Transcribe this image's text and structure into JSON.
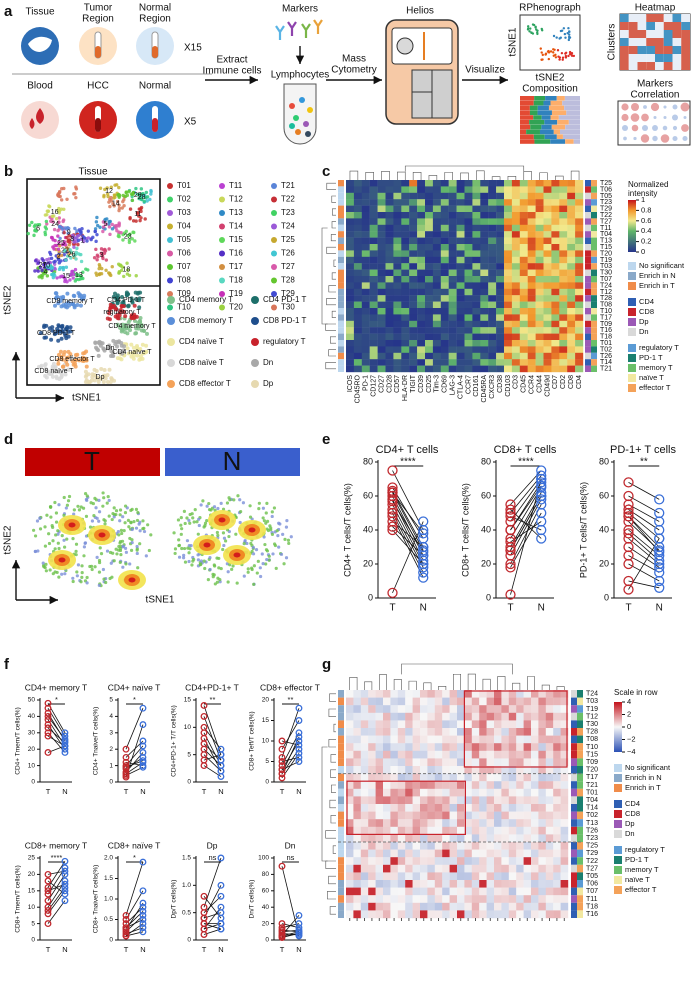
{
  "a": {
    "letter": "a",
    "tissue": "Tissue",
    "tumor_region": [
      "Tumor",
      "Region"
    ],
    "normal_region": [
      "Normal",
      "Region"
    ],
    "x15": "X15",
    "blood": "Blood",
    "hcc": "HCC",
    "normal": "Normal",
    "x5": "X5",
    "extract": [
      "Extract",
      "Immune cells"
    ],
    "markers": "Markers",
    "lymphocytes": "Lymphocytes",
    "mass_cytometry": [
      "Mass",
      "Cytometry"
    ],
    "helios": "Helios",
    "visualize": "Visualize",
    "rphenograph": "RPhenograph",
    "tsne1": "tSNE1",
    "tsne2": "tSNE2",
    "composition": "Composition",
    "heatmap": "Heatmap",
    "clusters": "Clusters",
    "markers_correlation": [
      "Markers",
      "Correlation"
    ]
  },
  "b": {
    "letter": "b",
    "title": "Tissue",
    "x_label": "tSNE1",
    "y_label": "tSNE2",
    "clusters": [
      "T01",
      "T02",
      "T03",
      "T04",
      "T05",
      "T06",
      "T07",
      "T08",
      "T09",
      "T10",
      "T11",
      "T12",
      "T13",
      "T14",
      "T15",
      "T16",
      "T17",
      "T18",
      "T19",
      "T20",
      "T21",
      "T22",
      "T23",
      "T24",
      "T25",
      "T26",
      "T27",
      "T28",
      "T29",
      "T30"
    ],
    "map_labels": [
      "11",
      "13",
      "10",
      "12",
      "28",
      "24",
      "4",
      "2",
      "14",
      "20",
      "15",
      "16",
      "5",
      "3",
      "23",
      "27",
      "22",
      "26",
      "25",
      "18",
      "9",
      "8",
      "6",
      "1"
    ],
    "cell_types": [
      {
        "name": "CD4 memory T",
        "color": "#7fc08a"
      },
      {
        "name": "CD4 PD-1 T",
        "color": "#1d6f6a"
      },
      {
        "name": "CD8 memory T",
        "color": "#5b8fd9"
      },
      {
        "name": "CD8 PD-1 T",
        "color": "#1f4e8c"
      },
      {
        "name": "CD4 naïve T",
        "color": "#ece6a0"
      },
      {
        "name": "regulatory T",
        "color": "#c8232c"
      },
      {
        "name": "CD8 naïve T",
        "color": "#d8d8d8"
      },
      {
        "name": "Dn",
        "color": "#a8a8a8"
      },
      {
        "name": "CD8 effector T",
        "color": "#f4a259"
      },
      {
        "name": "Dp",
        "color": "#e6d9b0"
      }
    ]
  },
  "c": {
    "letter": "c",
    "rows": [
      "T25",
      "T06",
      "T05",
      "T23",
      "T29",
      "T22",
      "T27",
      "T11",
      "T04",
      "T13",
      "T15",
      "T20",
      "T19",
      "T03",
      "T30",
      "T07",
      "T24",
      "T12",
      "T28",
      "T08",
      "T10",
      "T17",
      "T09",
      "T16",
      "T18",
      "T01",
      "T02",
      "T26",
      "T14",
      "T21"
    ],
    "columns": [
      "ICOS",
      "CD45RO",
      "PD-1",
      "CD127",
      "CD27",
      "CD28",
      "CD57",
      "HLA-DR",
      "TIGIT",
      "CD39",
      "CD25",
      "Tim-3",
      "CD69",
      "LAG-3",
      "CTLA-4",
      "CCR7",
      "CD161",
      "CD45RA",
      "CXCR3",
      "CD38",
      "CD103",
      "CD3",
      "CD45",
      "CCR4",
      "CD44",
      "CD49d",
      "CD7",
      "CD2",
      "CD8",
      "CD4"
    ],
    "colorbar_title": [
      "Normalized",
      "intensity"
    ],
    "colorbar_ticks": [
      1,
      0.8,
      0.6,
      0.4,
      0.2,
      0
    ]
  },
  "legend": [
    {
      "name": "No significant",
      "color": "#bdd7ee"
    },
    {
      "name": "Enrich in N",
      "color": "#8aa9c9"
    },
    {
      "name": "Enrich in T",
      "color": "#f08c4a"
    },
    {
      "name": "CD4",
      "color": "#2f5fb3"
    },
    {
      "name": "CD8",
      "color": "#c8232c"
    },
    {
      "name": "Dp",
      "color": "#9b59b6"
    },
    {
      "name": "Dn",
      "color": "#d9d9d9"
    },
    {
      "name": "regulatory T",
      "color": "#5b9bd5"
    },
    {
      "name": "PD-1 T",
      "color": "#1a7f6f"
    },
    {
      "name": "memory T",
      "color": "#6abf69"
    },
    {
      "name": "naïve T",
      "color": "#f2e8a0"
    },
    {
      "name": "effector T",
      "color": "#f4a259"
    }
  ],
  "d": {
    "letter": "d",
    "groups": [
      {
        "name": "T",
        "color": "#c00000"
      },
      {
        "name": "N",
        "color": "#3a5fcd"
      }
    ],
    "x_label": "tSNE1",
    "y_label": "tSNE2"
  },
  "e": {
    "letter": "e",
    "charts": [
      {
        "title": "CD4+ T cells",
        "y_label": "CD4+ T cells/T cells(%)",
        "significance": "****",
        "categories": [
          "T",
          "N"
        ],
        "ylim": [
          0,
          80
        ],
        "yticks": [
          0,
          20,
          40,
          60,
          80
        ],
        "series": [
          {
            "color": "#c0282d",
            "values": [
              75,
              65,
              63,
              62,
              60,
              58,
              55,
              52,
              50,
              48,
              45,
              42,
              40,
              3,
              62,
              57
            ]
          },
          {
            "color": "#3a6fd8",
            "values": [
              40,
              35,
              30,
              28,
              25,
              22,
              20,
              18,
              15,
              12,
              30,
              25,
              20,
              45,
              38,
              27
            ]
          }
        ]
      },
      {
        "title": "CD8+ T cells",
        "y_label": "CD8+ T cells/T cells(%)",
        "significance": "****",
        "categories": [
          "T",
          "N"
        ],
        "ylim": [
          0,
          80
        ],
        "yticks": [
          0,
          20,
          40,
          60,
          80
        ],
        "series": [
          {
            "color": "#c0282d",
            "values": [
              55,
              50,
              45,
              40,
              35,
              30,
              28,
              25,
              20,
              18,
              33,
              48,
              52,
              2,
              40,
              28
            ]
          },
          {
            "color": "#3a6fd8",
            "values": [
              75,
              72,
              70,
              68,
              65,
              62,
              60,
              58,
              55,
              50,
              45,
              40,
              35,
              70,
              66,
              60
            ]
          }
        ]
      },
      {
        "title": "PD-1+ T cells",
        "y_label": "PD-1+ T cells/T cells(%)",
        "significance": "**",
        "categories": [
          "T",
          "N"
        ],
        "ylim": [
          0,
          80
        ],
        "yticks": [
          0,
          20,
          40,
          60,
          80
        ],
        "series": [
          {
            "color": "#c0282d",
            "values": [
              68,
              60,
              55,
              52,
              50,
              48,
              45,
              40,
              38,
              35,
              30,
              25,
              20,
              10,
              5,
              48
            ]
          },
          {
            "color": "#3a6fd8",
            "values": [
              58,
              50,
              45,
              40,
              35,
              30,
              28,
              25,
              22,
              20,
              18,
              15,
              10,
              6,
              35,
              27
            ]
          }
        ]
      }
    ]
  },
  "f": {
    "letter": "f",
    "charts": [
      {
        "title": "CD4+ memory T",
        "y_label": "CD4+ Tmem/T cells(%)",
        "significance": "*",
        "categories": [
          "T",
          "N"
        ],
        "ylim": [
          0,
          50
        ],
        "yticks": [
          0,
          10,
          20,
          30,
          40,
          50
        ],
        "series": [
          {
            "color": "#c0282d",
            "values": [
              48,
              45,
              42,
              40,
              38,
              35,
              33,
              30,
              28,
              18
            ]
          },
          {
            "color": "#3a6fd8",
            "values": [
              30,
              28,
              25,
              26,
              22,
              20,
              24,
              18,
              22,
              22
            ]
          }
        ]
      },
      {
        "title": "CD4+ naïve T",
        "y_label": "CD4+ Tnaive/T cells(%)",
        "significance": "*",
        "categories": [
          "T",
          "N"
        ],
        "ylim": [
          0,
          5
        ],
        "yticks": [
          0,
          1,
          2,
          3,
          4,
          5
        ],
        "series": [
          {
            "color": "#c0282d",
            "values": [
              0.5,
              0.8,
              1.0,
              1.2,
              0.3,
              0.6,
              1.5,
              0.9,
              0.4,
              2.0
            ]
          },
          {
            "color": "#3a6fd8",
            "values": [
              1.2,
              1.5,
              2.2,
              1.0,
              3.5,
              1.8,
              2.5,
              1.3,
              0.9,
              4.5
            ]
          }
        ]
      },
      {
        "title": "CD4+PD-1+ T",
        "y_label": "CD4+PD-1+ T/T cells(%)",
        "significance": "**",
        "categories": [
          "T",
          "N"
        ],
        "ylim": [
          0,
          15
        ],
        "yticks": [
          0,
          5,
          10,
          15
        ],
        "series": [
          {
            "color": "#c0282d",
            "values": [
              14,
              12,
              10,
              9,
              8,
              7,
              6,
              5,
              4,
              3
            ]
          },
          {
            "color": "#3a6fd8",
            "values": [
              5,
              4,
              6,
              3,
              2,
              4,
              3,
              2,
              5,
              1
            ]
          }
        ]
      },
      {
        "title": "CD8+ effector T",
        "y_label": "CD8+ Teff/T cells(%)",
        "significance": "**",
        "categories": [
          "T",
          "N"
        ],
        "ylim": [
          0,
          20
        ],
        "yticks": [
          0,
          5,
          10,
          15,
          20
        ],
        "series": [
          {
            "color": "#c0282d",
            "values": [
              2,
              3,
              5,
              4,
              8,
              1,
              6,
              10,
              3,
              2
            ]
          },
          {
            "color": "#3a6fd8",
            "values": [
              8,
              10,
              6,
              12,
              15,
              7,
              18,
              9,
              5,
              11
            ]
          }
        ]
      },
      {
        "title": "CD8+ memory T",
        "y_label": "CD8+ Tmem/T cells(%)",
        "significance": "****",
        "categories": [
          "T",
          "N"
        ],
        "ylim": [
          0,
          25
        ],
        "yticks": [
          0,
          5,
          10,
          15,
          20,
          25
        ],
        "series": [
          {
            "color": "#c0282d",
            "values": [
              5,
              8,
              10,
              12,
              14,
              15,
              16,
              18,
              20,
              9
            ]
          },
          {
            "color": "#3a6fd8",
            "values": [
              12,
              15,
              18,
              20,
              22,
              17,
              24,
              14,
              21,
              16
            ]
          }
        ]
      },
      {
        "title": "CD8+ naïve T",
        "y_label": "CD8+ Tnaive/T cells(%)",
        "significance": "*",
        "categories": [
          "T",
          "N"
        ],
        "ylim": [
          0,
          2
        ],
        "yticks": [
          0,
          0.5,
          {
            "value": 1,
            "label": "1.0"
          },
          1.5,
          {
            "value": 2,
            "label": "2.0"
          }
        ],
        "series": [
          {
            "color": "#c0282d",
            "values": [
              0.1,
              0.2,
              0.3,
              0.5,
              0.15,
              0.4,
              0.25,
              0.1,
              0.6,
              0.3
            ]
          },
          {
            "color": "#3a6fd8",
            "values": [
              0.4,
              0.6,
              0.5,
              1.2,
              0.3,
              0.8,
              0.9,
              0.2,
              1.9,
              0.7
            ]
          }
        ]
      },
      {
        "title": "Dp",
        "y_label": "Dp/T cells(%)",
        "significance": "ns",
        "categories": [
          "T",
          "N"
        ],
        "ylim": [
          0,
          1.5
        ],
        "yticks": [
          0,
          0.5,
          {
            "value": 1,
            "label": "1.0"
          },
          1.5
        ],
        "series": [
          {
            "color": "#c0282d",
            "values": [
              0.2,
              0.4,
              0.3,
              0.5,
              0.6,
              0.8,
              0.1,
              0.2,
              0.3,
              0.4
            ]
          },
          {
            "color": "#3a6fd8",
            "values": [
              0.3,
              0.5,
              0.2,
              0.8,
              1.5,
              0.4,
              0.2,
              0.6,
              0.3,
              1.0
            ]
          }
        ]
      },
      {
        "title": "Dn",
        "y_label": "Dn/T cells(%)",
        "significance": "ns",
        "categories": [
          "T",
          "N"
        ],
        "ylim": [
          0,
          100
        ],
        "yticks": [
          0,
          20,
          40,
          60,
          80,
          100
        ],
        "series": [
          {
            "color": "#c0282d",
            "values": [
              5,
              8,
              10,
              3,
              15,
              20,
              6,
              90,
              12,
              4
            ]
          },
          {
            "color": "#3a6fd8",
            "values": [
              10,
              6,
              12,
              8,
              20,
              15,
              30,
              5,
              10,
              8
            ]
          }
        ]
      }
    ]
  },
  "g": {
    "letter": "g",
    "rows": [
      "T24",
      "T03",
      "T19",
      "T12",
      "T30",
      "T28",
      "T08",
      "T10",
      "T15",
      "T09",
      "T20",
      "T17",
      "T21",
      "T01",
      "T04",
      "T14",
      "T02",
      "T13",
      "T26",
      "T23",
      "T25",
      "T29",
      "T22",
      "T27",
      "T05",
      "T06",
      "T07",
      "T11",
      "T18",
      "T16"
    ],
    "colorbar_title": "Scale in row",
    "colorbar_ticks": [
      4,
      2,
      0,
      {
        "value": -2,
        "label": "−2"
      },
      {
        "value": -4,
        "label": "−4"
      }
    ]
  }
}
